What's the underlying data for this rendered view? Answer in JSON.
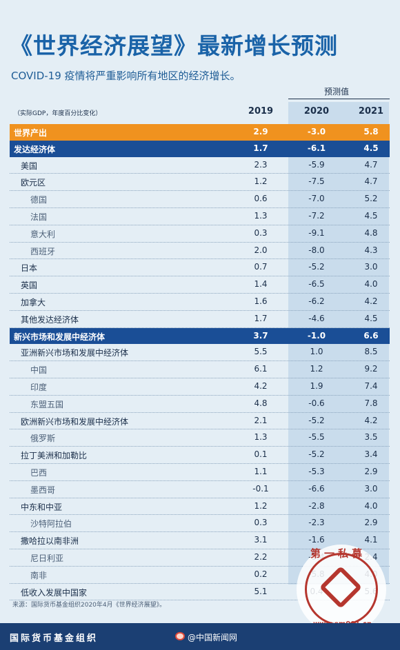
{
  "title": "《世界经济展望》最新增长预测",
  "subtitle": "COVID-19 疫情将严重影响所有地区的经济增长。",
  "forecast_label": "预测值",
  "unit_note": "（实际GDP，年度百分比变化）",
  "years": [
    "2019",
    "2020",
    "2021"
  ],
  "rows": [
    {
      "name": "世界产出",
      "v2019": "2.9",
      "v2020": "-3.0",
      "v2021": "5.8",
      "style": "world"
    },
    {
      "name": "发达经济体",
      "v2019": "1.7",
      "v2020": "-6.1",
      "v2021": "4.5",
      "style": "group"
    },
    {
      "name": "美国",
      "v2019": "2.3",
      "v2020": "-5.9",
      "v2021": "4.7",
      "style": "main"
    },
    {
      "name": "欧元区",
      "v2019": "1.2",
      "v2020": "-7.5",
      "v2021": "4.7",
      "style": "main"
    },
    {
      "name": "德国",
      "v2019": "0.6",
      "v2020": "-7.0",
      "v2021": "5.2",
      "style": "sub"
    },
    {
      "name": "法国",
      "v2019": "1.3",
      "v2020": "-7.2",
      "v2021": "4.5",
      "style": "sub"
    },
    {
      "name": "意大利",
      "v2019": "0.3",
      "v2020": "-9.1",
      "v2021": "4.8",
      "style": "sub"
    },
    {
      "name": "西班牙",
      "v2019": "2.0",
      "v2020": "-8.0",
      "v2021": "4.3",
      "style": "sub"
    },
    {
      "name": "日本",
      "v2019": "0.7",
      "v2020": "-5.2",
      "v2021": "3.0",
      "style": "main"
    },
    {
      "name": "英国",
      "v2019": "1.4",
      "v2020": "-6.5",
      "v2021": "4.0",
      "style": "main"
    },
    {
      "name": "加拿大",
      "v2019": "1.6",
      "v2020": "-6.2",
      "v2021": "4.2",
      "style": "main"
    },
    {
      "name": "其他发达经济体",
      "v2019": "1.7",
      "v2020": "-4.6",
      "v2021": "4.5",
      "style": "main"
    },
    {
      "name": "新兴市场和发展中经济体",
      "v2019": "3.7",
      "v2020": "-1.0",
      "v2021": "6.6",
      "style": "group"
    },
    {
      "name": "亚洲新兴市场和发展中经济体",
      "v2019": "5.5",
      "v2020": "1.0",
      "v2021": "8.5",
      "style": "main"
    },
    {
      "name": "中国",
      "v2019": "6.1",
      "v2020": "1.2",
      "v2021": "9.2",
      "style": "sub"
    },
    {
      "name": "印度",
      "v2019": "4.2",
      "v2020": "1.9",
      "v2021": "7.4",
      "style": "sub"
    },
    {
      "name": "东盟五国",
      "v2019": "4.8",
      "v2020": "-0.6",
      "v2021": "7.8",
      "style": "sub"
    },
    {
      "name": "欧洲新兴市场和发展中经济体",
      "v2019": "2.1",
      "v2020": "-5.2",
      "v2021": "4.2",
      "style": "main"
    },
    {
      "name": "俄罗斯",
      "v2019": "1.3",
      "v2020": "-5.5",
      "v2021": "3.5",
      "style": "sub"
    },
    {
      "name": "拉丁美洲和加勒比",
      "v2019": "0.1",
      "v2020": "-5.2",
      "v2021": "3.4",
      "style": "main"
    },
    {
      "name": "巴西",
      "v2019": "1.1",
      "v2020": "-5.3",
      "v2021": "2.9",
      "style": "sub"
    },
    {
      "name": "墨西哥",
      "v2019": "-0.1",
      "v2020": "-6.6",
      "v2021": "3.0",
      "style": "sub"
    },
    {
      "name": "中东和中亚",
      "v2019": "1.2",
      "v2020": "-2.8",
      "v2021": "4.0",
      "style": "main"
    },
    {
      "name": "沙特阿拉伯",
      "v2019": "0.3",
      "v2020": "-2.3",
      "v2021": "2.9",
      "style": "sub"
    },
    {
      "name": "撒哈拉以南非洲",
      "v2019": "3.1",
      "v2020": "-1.6",
      "v2021": "4.1",
      "style": "main"
    },
    {
      "name": "尼日利亚",
      "v2019": "2.2",
      "v2020": "-3.4",
      "v2021": "2.4",
      "style": "sub"
    },
    {
      "name": "南非",
      "v2019": "0.2",
      "v2020": "-5.8",
      "v2021": "4.0",
      "style": "sub"
    },
    {
      "name": "低收入发展中国家",
      "v2019": "5.1",
      "v2020": "0.4",
      "v2021": "5.6",
      "style": "main"
    }
  ],
  "source": "来源：国际货币基金组织2020年4月《世界经济展望》。",
  "footer": {
    "org": "国际货币基金组织",
    "credit": "@中国新闻网"
  },
  "watermark": {
    "text": "第一私募",
    "url": "www.sm001.cn"
  },
  "colors": {
    "world_row": "#f0921f",
    "group_row": "#1a4e96",
    "title": "#1a63a8",
    "footer": "#1b3f73"
  }
}
